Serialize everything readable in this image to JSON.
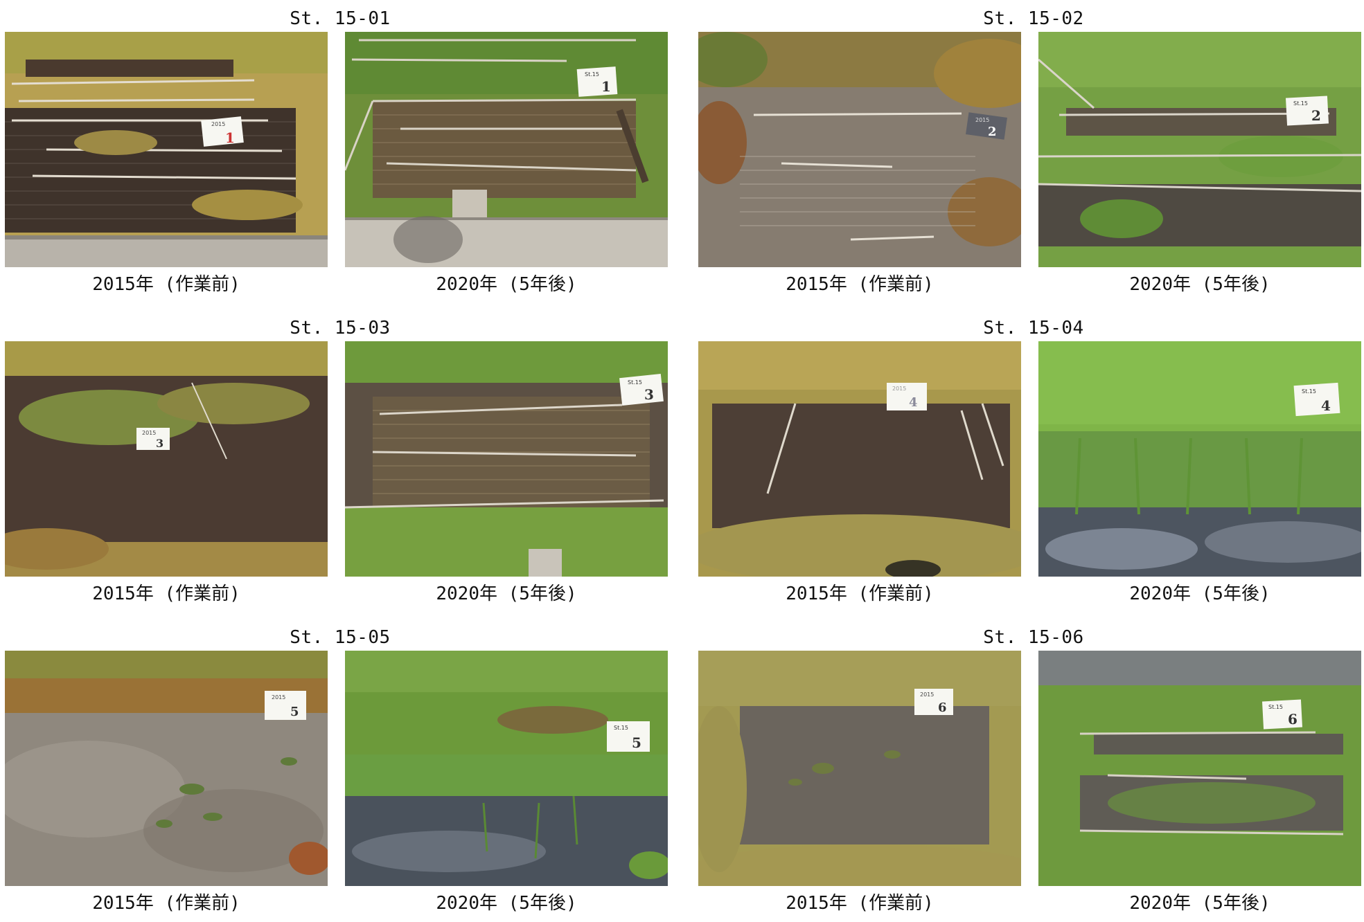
{
  "stations": [
    {
      "title": "St. 15-01",
      "before_caption": "2015年 (作業前)",
      "after_caption": "2020年 (5年後)",
      "sign_number": "1",
      "sign_year_label": "2015",
      "sign_station_label": "St.15"
    },
    {
      "title": "St. 15-02",
      "before_caption": "2015年 (作業前)",
      "after_caption": "2020年 (5年後)",
      "sign_number": "2",
      "sign_year_label": "2015",
      "sign_station_label": "St.15"
    },
    {
      "title": "St. 15-03",
      "before_caption": "2015年 (作業前)",
      "after_caption": "2020年 (5年後)",
      "sign_number": "3",
      "sign_year_label": "2015",
      "sign_station_label": "St.15"
    },
    {
      "title": "St. 15-04",
      "before_caption": "2015年 (作業前)",
      "after_caption": "2020年 (5年後)",
      "sign_number": "4",
      "sign_year_label": "2015",
      "sign_station_label": "St.15"
    },
    {
      "title": "St. 15-05",
      "before_caption": "2015年 (作業前)",
      "after_caption": "2020年 (5年後)",
      "sign_number": "5",
      "sign_year_label": "2015",
      "sign_station_label": "St.15"
    },
    {
      "title": "St. 15-06",
      "before_caption": "2015年 (作業前)",
      "after_caption": "2020年 (5年後)",
      "sign_number": "6",
      "sign_year_label": "2015",
      "sign_station_label": "St.15"
    }
  ],
  "colors": {
    "grass_dry": "#b99a4a",
    "grass_green": "#6f9a3a",
    "grass_bright": "#7fbf3f",
    "mud_dark": "#4a3a30",
    "mud_gray": "#8d8377",
    "water": "#5d6670",
    "boardwalk": "#b9b4ab",
    "sign": "#f7f7f2"
  }
}
